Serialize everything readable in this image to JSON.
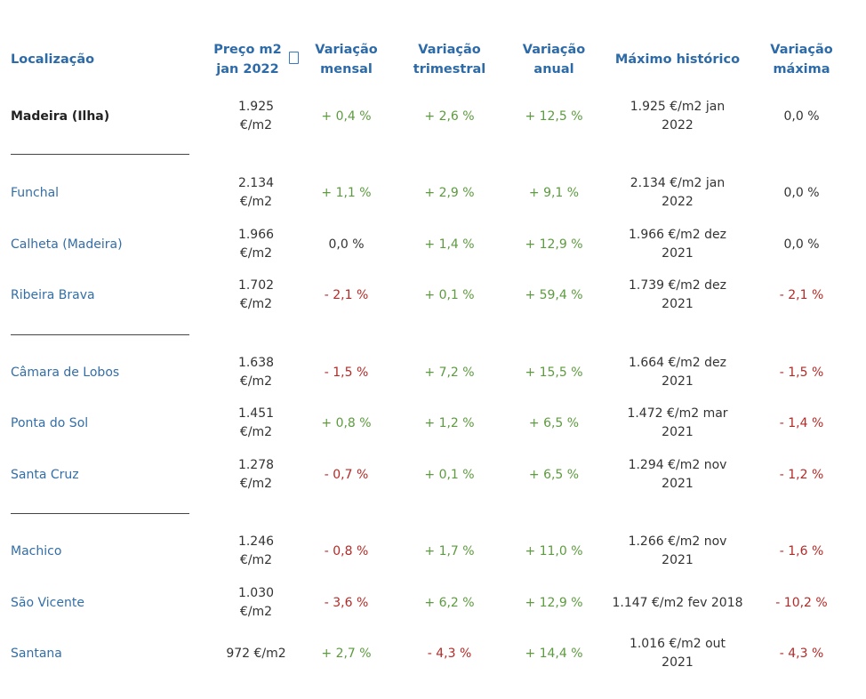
{
  "headers": {
    "location": "Localização",
    "price": [
      "Preço m2",
      "jan 2022"
    ],
    "monthly": [
      "Variação",
      "mensal"
    ],
    "quarterly": [
      "Variação",
      "trimestral"
    ],
    "annual": [
      "Variação",
      "anual"
    ],
    "max_hist": "Máximo histórico",
    "max_var": [
      "Variação",
      "máxima"
    ],
    "sort_icon": "sort-icon"
  },
  "colors": {
    "header": "#2d6aa8",
    "link": "#336ea7",
    "positive": "#5d9b3f",
    "negative": "#b52a27"
  },
  "rows": [
    {
      "location": "Madeira (Ilha)",
      "bold": true,
      "price": [
        "1.925",
        "€/m2"
      ],
      "monthly": "+ 0,4 %",
      "quarterly": "+ 2,6 %",
      "annual": "+ 12,5 %",
      "max_hist": [
        "1.925 €/m2 jan",
        "2022"
      ],
      "max_var": "0,0 %"
    },
    {
      "location": "Funchal",
      "price": [
        "2.134",
        "€/m2"
      ],
      "monthly": "+ 1,1 %",
      "quarterly": "+ 2,9 %",
      "annual": "+ 9,1 %",
      "max_hist": [
        "2.134 €/m2 jan",
        "2022"
      ],
      "max_var": "0,0 %"
    },
    {
      "location": "Calheta (Madeira)",
      "price": [
        "1.966",
        "€/m2"
      ],
      "monthly": "0,0 %",
      "quarterly": "+ 1,4 %",
      "annual": "+ 12,9 %",
      "max_hist": [
        "1.966 €/m2 dez",
        "2021"
      ],
      "max_var": "0,0 %"
    },
    {
      "location": "Ribeira Brava",
      "price": [
        "1.702",
        "€/m2"
      ],
      "monthly": "- 2,1 %",
      "quarterly": "+ 0,1 %",
      "annual": "+ 59,4 %",
      "max_hist": [
        "1.739 €/m2 dez",
        "2021"
      ],
      "max_var": "- 2,1 %"
    },
    {
      "location": "Câmara de Lobos",
      "price": [
        "1.638",
        "€/m2"
      ],
      "monthly": "- 1,5 %",
      "quarterly": "+ 7,2 %",
      "annual": "+ 15,5 %",
      "max_hist": [
        "1.664 €/m2 dez",
        "2021"
      ],
      "max_var": "- 1,5 %"
    },
    {
      "location": "Ponta do Sol",
      "price": [
        "1.451",
        "€/m2"
      ],
      "monthly": "+ 0,8 %",
      "quarterly": "+ 1,2 %",
      "annual": "+ 6,5 %",
      "max_hist": [
        "1.472 €/m2 mar",
        "2021"
      ],
      "max_var": "- 1,4 %"
    },
    {
      "location": "Santa Cruz",
      "price": [
        "1.278",
        "€/m2"
      ],
      "monthly": "- 0,7 %",
      "quarterly": "+ 0,1 %",
      "annual": "+ 6,5 %",
      "max_hist": [
        "1.294 €/m2 nov",
        "2021"
      ],
      "max_var": "- 1,2 %"
    },
    {
      "location": "Machico",
      "price": [
        "1.246",
        "€/m2"
      ],
      "monthly": "- 0,8 %",
      "quarterly": "+ 1,7 %",
      "annual": "+ 11,0 %",
      "max_hist": [
        "1.266 €/m2 nov",
        "2021"
      ],
      "max_var": "- 1,6 %"
    },
    {
      "location": "São Vicente",
      "price": [
        "1.030",
        "€/m2"
      ],
      "monthly": "- 3,6 %",
      "quarterly": "+ 6,2 %",
      "annual": "+ 12,9 %",
      "max_hist": [
        "1.147 €/m2 fev 2018"
      ],
      "max_var": "- 10,2 %"
    },
    {
      "location": "Santana",
      "price": [
        "972 €/m2"
      ],
      "monthly": "+ 2,7 %",
      "quarterly": "- 4,3 %",
      "annual": "+ 14,4 %",
      "max_hist": [
        "1.016 €/m2 out",
        "2021"
      ],
      "max_var": "- 4,3 %"
    }
  ]
}
